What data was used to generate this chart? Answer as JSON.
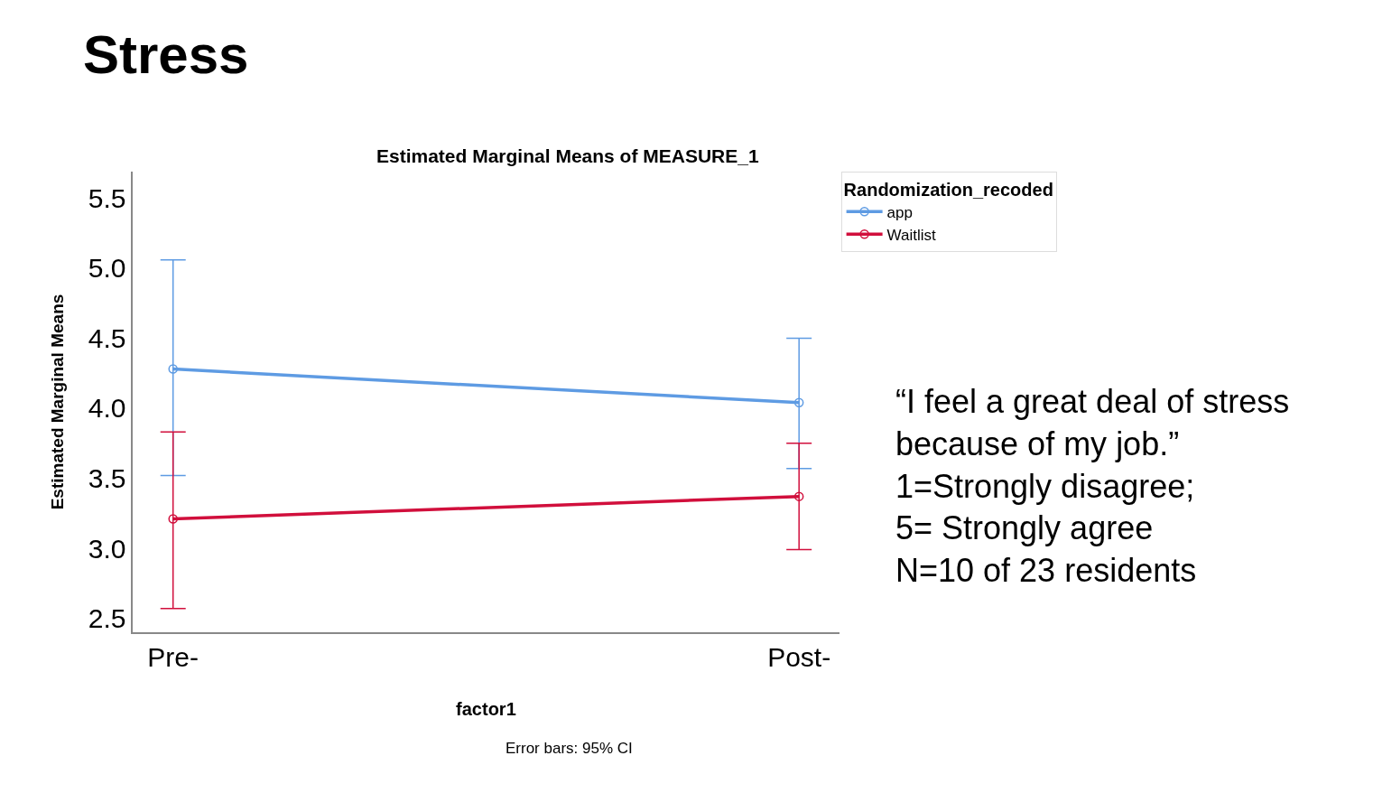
{
  "chart_data": {
    "type": "line",
    "title": "Stress",
    "subtitle": "Estimated Marginal Means of MEASURE_1",
    "xlabel": "factor1",
    "ylabel": "Estimated Marginal Means",
    "legend_title": "Randomization_recoded",
    "categories": [
      "Pre-",
      "Post-"
    ],
    "series": [
      {
        "name": "app",
        "color": "#5e9be3",
        "values": [
          4.28,
          4.04
        ],
        "errors": [
          [
            3.52,
            5.06
          ],
          [
            3.57,
            4.5
          ]
        ]
      },
      {
        "name": "Waitlist",
        "color": "#d10f3c",
        "values": [
          3.21,
          3.37
        ],
        "errors": [
          [
            2.57,
            3.83
          ],
          [
            2.99,
            3.75
          ]
        ]
      }
    ],
    "ylim": [
      2.4,
      5.69
    ],
    "yticks": [
      {
        "value": 2.5,
        "label": "2.5"
      },
      {
        "value": 3,
        "label": "3.0"
      },
      {
        "value": 3.5,
        "label": "3.5"
      },
      {
        "value": 4,
        "label": "4.0"
      },
      {
        "value": 4.5,
        "label": "4.5"
      },
      {
        "value": 5,
        "label": "5.0"
      },
      {
        "value": 5.5,
        "label": "5.5"
      }
    ],
    "grid": false,
    "legend": "top right",
    "marker": "circle",
    "line_style": "solid",
    "annotations": [
      "Error bars: 95% CI",
      "“I feel a great deal of stress\nbecause of my job.”\n1=Strongly disagree;\n5= Strongly agree\nN=10 of 23 residents"
    ]
  }
}
